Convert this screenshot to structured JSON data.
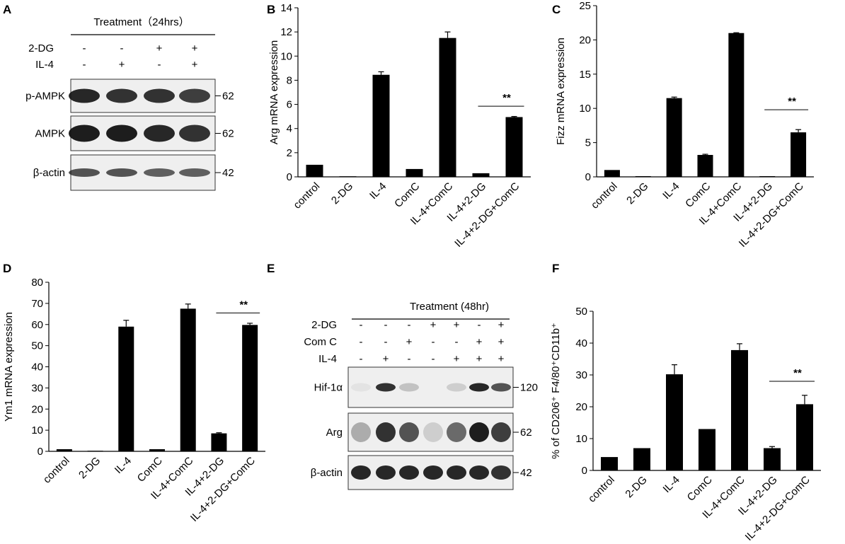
{
  "panels": {
    "A": "A",
    "B": "B",
    "C": "C",
    "D": "D",
    "E": "E",
    "F": "F"
  },
  "blot_A": {
    "treatment_title": "Treatment（24hrs）",
    "row_labels": [
      "2-DG",
      "IL-4"
    ],
    "signs": [
      [
        "-",
        "-",
        "+",
        "+"
      ],
      [
        "-",
        "+",
        "-",
        "+"
      ]
    ],
    "bands": [
      {
        "name": "p-AMPK",
        "kda": "62"
      },
      {
        "name": "AMPK",
        "kda": "62"
      },
      {
        "name": "β-actin",
        "kda": "42"
      }
    ]
  },
  "blot_E": {
    "treatment_title": "Treatment (48hr)",
    "row_labels": [
      "2-DG",
      "Com C",
      "IL-4"
    ],
    "signs": [
      [
        "-",
        "-",
        "-",
        "+",
        "+",
        "-",
        "+"
      ],
      [
        "-",
        "-",
        "+",
        "-",
        "-",
        "+",
        "+"
      ],
      [
        "-",
        "+",
        "-",
        "-",
        "+",
        "+",
        "+"
      ]
    ],
    "bands": [
      {
        "name": "Hif-1α",
        "kda": "120"
      },
      {
        "name": "Arg",
        "kda": "62"
      },
      {
        "name": "β-actin",
        "kda": "42"
      }
    ]
  },
  "chart_data": [
    {
      "panel": "B",
      "type": "bar",
      "categories": [
        "control",
        "2-DG",
        "IL-4",
        "ComC",
        "IL-4+ComC",
        "IL-4+2-DG",
        "IL-4+2-DG+ComC"
      ],
      "values": [
        1.0,
        0.02,
        8.45,
        0.65,
        11.5,
        0.3,
        4.95
      ],
      "errors": [
        0,
        0,
        0.25,
        0,
        0.5,
        0,
        0.05
      ],
      "ylabel": "Arg mRNA expression",
      "ylim": [
        0,
        14
      ],
      "yticks": [
        0,
        2,
        4,
        6,
        8,
        10,
        12,
        14
      ],
      "significance": {
        "from": 5,
        "to": 6,
        "label": "**",
        "level": 5.85
      }
    },
    {
      "panel": "C",
      "type": "bar",
      "categories": [
        "control",
        "2-DG",
        "IL-4",
        "ComC",
        "IL-4+ComC",
        "IL-4+2-DG",
        "IL-4+2-DG+ComC"
      ],
      "values": [
        1.0,
        0.1,
        11.5,
        3.2,
        21.0,
        0.1,
        6.5
      ],
      "errors": [
        0,
        0,
        0.15,
        0.1,
        0.05,
        0,
        0.4
      ],
      "ylabel": "Fizz mRNA expression",
      "ylim": [
        0,
        25
      ],
      "yticks": [
        0,
        5,
        10,
        15,
        20,
        25
      ],
      "significance": {
        "from": 5,
        "to": 6,
        "label": "**",
        "level": 9.8
      }
    },
    {
      "panel": "D",
      "type": "bar",
      "categories": [
        "control",
        "2-DG",
        "IL-4",
        "ComC",
        "IL-4+ComC",
        "IL-4+2-DG",
        "IL-4+2-DG+ComC"
      ],
      "values": [
        1.0,
        0.0,
        59.0,
        1.0,
        67.5,
        8.5,
        59.8
      ],
      "errors": [
        0,
        0,
        3.0,
        0,
        2.2,
        0.3,
        0.8
      ],
      "ylabel": "Ym1 mRNA expression",
      "ylim": [
        0,
        80
      ],
      "yticks": [
        0,
        10,
        20,
        30,
        40,
        50,
        60,
        70,
        80
      ],
      "significance": {
        "from": 5,
        "to": 6,
        "label": "**",
        "level": 65.5
      }
    },
    {
      "panel": "F",
      "type": "bar",
      "categories": [
        "control",
        "2-DG",
        "IL-4",
        "ComC",
        "IL-4+ComC",
        "IL-4+2-DG",
        "IL-4+2-DG+ComC"
      ],
      "values": [
        4.2,
        7.0,
        30.2,
        13.0,
        37.8,
        7.0,
        20.8
      ],
      "errors": [
        0,
        0,
        3.0,
        0,
        2.0,
        0.5,
        2.8
      ],
      "ylabel": "% of CD206⁺ F4/80⁺CD11b⁺",
      "ylim": [
        0,
        50
      ],
      "yticks": [
        0,
        10,
        20,
        30,
        40,
        50
      ],
      "significance": {
        "from": 5,
        "to": 6,
        "label": "**",
        "level": 28.0
      }
    }
  ]
}
